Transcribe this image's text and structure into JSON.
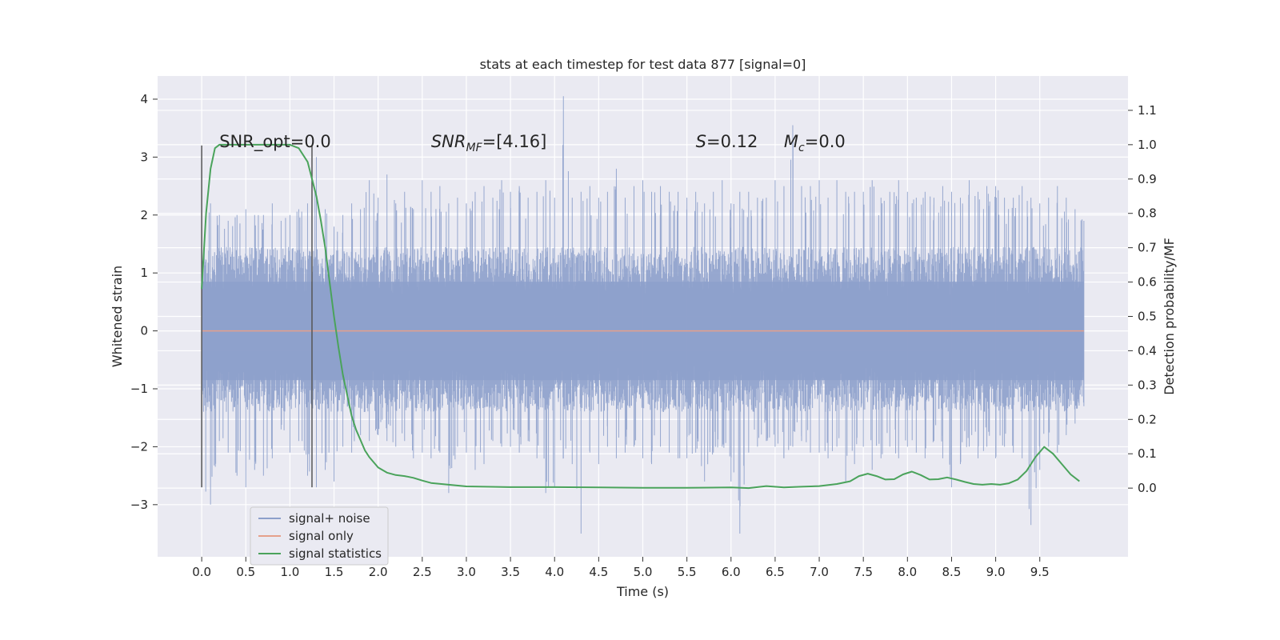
{
  "chart_data": {
    "type": "line",
    "title": "stats at each timestep for test data 877 [signal=0]",
    "xlabel": "Time (s)",
    "ylabel_left": "Whitened strain",
    "ylabel_right": "Detection probability/MF",
    "xlim": [
      -0.5,
      10.5
    ],
    "ylim_left": [
      -3.9,
      4.4
    ],
    "ylim_right": [
      -0.2,
      1.2
    ],
    "xticks": [
      0.0,
      0.5,
      1.0,
      1.5,
      2.0,
      2.5,
      3.0,
      3.5,
      4.0,
      4.5,
      5.0,
      5.5,
      6.0,
      6.5,
      7.0,
      7.5,
      8.0,
      8.5,
      9.0,
      9.5
    ],
    "xtick_labels": [
      "0.0",
      "0.5",
      "1.0",
      "1.5",
      "2.0",
      "2.5",
      "3.0",
      "3.5",
      "4.0",
      "4.5",
      "5.0",
      "5.5",
      "6.0",
      "6.5",
      "7.0",
      "7.5",
      "8.0",
      "8.5",
      "9.0",
      "9.5"
    ],
    "yticks_left": [
      4,
      3,
      2,
      1,
      0,
      -1,
      -2,
      -3
    ],
    "ytick_labels_left": [
      "4",
      "3",
      "2",
      "1",
      "0",
      "−1",
      "−2",
      "−3"
    ],
    "yticks_right": [
      1.1,
      1.0,
      0.9,
      0.8,
      0.7,
      0.6,
      0.5,
      0.4,
      0.3,
      0.2,
      0.1,
      0.0
    ],
    "ytick_labels_right": [
      "1.1",
      "1.0",
      "0.9",
      "0.8",
      "0.7",
      "0.6",
      "0.5",
      "0.4",
      "0.3",
      "0.2",
      "0.1",
      "0.0"
    ],
    "grid": true,
    "legend_position": "lower-left",
    "annotations": {
      "snr_opt": "SNR_opt=0.0",
      "snr_mf_main": "SNR",
      "snr_mf_sub": "MF",
      "snr_mf_rest": "=[4.16]",
      "s_main": "S",
      "s_rest": "=0.12",
      "mc_main": "M",
      "mc_sub": "c",
      "mc_rest": "=0.0"
    },
    "vlines": [
      {
        "x": 0.0,
        "ymin": -2.7,
        "ymax": 3.2
      },
      {
        "x": 1.25,
        "ymin": -2.7,
        "ymax": 3.2
      }
    ],
    "series": [
      {
        "name": "signal+ noise",
        "color": "#8da0cb",
        "axis": "left",
        "x_range": [
          0.0,
          10.0
        ],
        "envelope": [
          [
            0.0,
            -2.7,
            1.4
          ],
          [
            0.1,
            -3.0,
            2.2
          ],
          [
            0.2,
            -1.9,
            2.0
          ],
          [
            0.3,
            -2.1,
            1.9
          ],
          [
            0.4,
            -2.5,
            2.0
          ],
          [
            0.5,
            -2.7,
            2.1
          ],
          [
            0.6,
            -2.4,
            2.0
          ],
          [
            0.7,
            -2.5,
            2.0
          ],
          [
            0.8,
            -2.2,
            2.2
          ],
          [
            0.9,
            -1.7,
            1.9
          ],
          [
            1.0,
            -2.1,
            2.0
          ],
          [
            1.1,
            -1.9,
            2.1
          ],
          [
            1.2,
            -2.5,
            2.2
          ],
          [
            1.3,
            -2.7,
            3.0
          ],
          [
            1.4,
            -2.4,
            2.1
          ],
          [
            1.5,
            -2.6,
            1.8
          ],
          [
            1.6,
            -2.0,
            2.0
          ],
          [
            1.7,
            -2.1,
            2.2
          ],
          [
            1.8,
            -1.8,
            2.1
          ],
          [
            1.9,
            -1.9,
            2.6
          ],
          [
            2.0,
            -1.8,
            2.3
          ],
          [
            2.1,
            -1.9,
            2.7
          ],
          [
            2.2,
            -2.0,
            2.2
          ],
          [
            2.3,
            -1.9,
            2.4
          ],
          [
            2.4,
            -2.2,
            2.1
          ],
          [
            2.5,
            -2.1,
            2.6
          ],
          [
            2.6,
            -2.2,
            2.4
          ],
          [
            2.7,
            -2.1,
            2.5
          ],
          [
            2.8,
            -2.8,
            2.2
          ],
          [
            2.9,
            -2.0,
            2.3
          ],
          [
            3.0,
            -2.1,
            2.2
          ],
          [
            3.1,
            -2.4,
            2.4
          ],
          [
            3.2,
            -2.3,
            2.5
          ],
          [
            3.3,
            -1.9,
            2.3
          ],
          [
            3.4,
            -2.0,
            2.6
          ],
          [
            3.5,
            -2.0,
            2.4
          ],
          [
            3.6,
            -2.1,
            2.5
          ],
          [
            3.7,
            -1.9,
            2.3
          ],
          [
            3.8,
            -2.2,
            2.4
          ],
          [
            3.9,
            -2.8,
            2.6
          ],
          [
            4.0,
            -2.7,
            2.3
          ],
          [
            4.1,
            -2.2,
            4.05
          ],
          [
            4.2,
            -2.3,
            2.3
          ],
          [
            4.3,
            -3.5,
            2.4
          ],
          [
            4.4,
            -2.1,
            2.5
          ],
          [
            4.5,
            -2.3,
            2.3
          ],
          [
            4.6,
            -2.0,
            2.4
          ],
          [
            4.7,
            -2.2,
            2.8
          ],
          [
            4.8,
            -2.1,
            2.3
          ],
          [
            4.9,
            -2.0,
            2.5
          ],
          [
            5.0,
            -2.2,
            2.6
          ],
          [
            5.1,
            -2.3,
            2.4
          ],
          [
            5.2,
            -2.0,
            2.5
          ],
          [
            5.3,
            -2.1,
            2.4
          ],
          [
            5.4,
            -2.2,
            2.4
          ],
          [
            5.5,
            -2.2,
            2.3
          ],
          [
            5.6,
            -2.1,
            2.4
          ],
          [
            5.7,
            -2.6,
            2.2
          ],
          [
            5.8,
            -2.1,
            2.4
          ],
          [
            5.9,
            -2.0,
            2.6
          ],
          [
            6.0,
            -2.6,
            2.2
          ],
          [
            6.1,
            -3.5,
            2.4
          ],
          [
            6.2,
            -2.1,
            2.4
          ],
          [
            6.3,
            -2.0,
            2.3
          ],
          [
            6.4,
            -1.9,
            2.3
          ],
          [
            6.5,
            -2.0,
            2.6
          ],
          [
            6.6,
            -2.2,
            2.5
          ],
          [
            6.7,
            -2.0,
            3.55
          ],
          [
            6.8,
            -1.9,
            2.5
          ],
          [
            6.9,
            -2.1,
            2.5
          ],
          [
            7.0,
            -2.1,
            2.6
          ],
          [
            7.1,
            -2.2,
            2.3
          ],
          [
            7.2,
            -2.0,
            2.6
          ],
          [
            7.3,
            -2.6,
            2.4
          ],
          [
            7.4,
            -2.3,
            2.4
          ],
          [
            7.5,
            -2.0,
            2.4
          ],
          [
            7.6,
            -2.4,
            2.6
          ],
          [
            7.7,
            -2.2,
            2.3
          ],
          [
            7.8,
            -2.0,
            2.4
          ],
          [
            7.9,
            -2.2,
            2.6
          ],
          [
            8.0,
            -2.0,
            2.4
          ],
          [
            8.1,
            -2.1,
            2.3
          ],
          [
            8.2,
            -2.2,
            2.4
          ],
          [
            8.3,
            -1.9,
            2.3
          ],
          [
            8.4,
            -2.2,
            2.5
          ],
          [
            8.5,
            -2.7,
            2.4
          ],
          [
            8.6,
            -2.3,
            2.3
          ],
          [
            8.7,
            -2.0,
            2.6
          ],
          [
            8.8,
            -2.2,
            2.4
          ],
          [
            8.9,
            -2.0,
            2.5
          ],
          [
            9.0,
            -2.2,
            2.5
          ],
          [
            9.1,
            -2.0,
            2.3
          ],
          [
            9.2,
            -2.1,
            2.3
          ],
          [
            9.3,
            -2.2,
            2.5
          ],
          [
            9.4,
            -3.35,
            2.3
          ],
          [
            9.5,
            -2.4,
            2.2
          ],
          [
            9.6,
            -2.0,
            2.3
          ],
          [
            9.7,
            -2.1,
            2.5
          ],
          [
            9.8,
            -1.8,
            2.3
          ],
          [
            9.9,
            -1.6,
            2.1
          ],
          [
            10.0,
            -1.3,
            1.9
          ]
        ]
      },
      {
        "name": "signal only",
        "color": "#e5a08b",
        "axis": "left",
        "x": [
          0.0,
          10.0
        ],
        "y": [
          0.0,
          0.0
        ]
      },
      {
        "name": "signal statistics",
        "color": "#4aa35b",
        "axis": "right",
        "x": [
          0.0,
          0.05,
          0.1,
          0.15,
          0.2,
          0.3,
          0.4,
          0.5,
          0.6,
          0.7,
          0.8,
          0.9,
          1.0,
          1.1,
          1.2,
          1.25,
          1.3,
          1.35,
          1.4,
          1.45,
          1.5,
          1.55,
          1.6,
          1.65,
          1.7,
          1.75,
          1.8,
          1.85,
          1.9,
          2.0,
          2.1,
          2.2,
          2.3,
          2.4,
          2.5,
          2.6,
          2.8,
          3.0,
          3.5,
          4.0,
          4.5,
          5.0,
          5.5,
          6.0,
          6.2,
          6.4,
          6.6,
          6.8,
          7.0,
          7.2,
          7.35,
          7.45,
          7.55,
          7.65,
          7.75,
          7.85,
          7.95,
          8.05,
          8.15,
          8.25,
          8.35,
          8.45,
          8.55,
          8.65,
          8.75,
          8.85,
          8.95,
          9.05,
          9.15,
          9.25,
          9.35,
          9.45,
          9.55,
          9.65,
          9.75,
          9.85,
          9.95
        ],
        "y": [
          0.58,
          0.8,
          0.93,
          0.99,
          1.0,
          1.0,
          1.0,
          1.0,
          1.0,
          1.0,
          1.0,
          1.0,
          1.0,
          0.99,
          0.95,
          0.9,
          0.85,
          0.78,
          0.7,
          0.6,
          0.5,
          0.41,
          0.33,
          0.27,
          0.21,
          0.17,
          0.14,
          0.11,
          0.09,
          0.06,
          0.045,
          0.038,
          0.035,
          0.03,
          0.022,
          0.015,
          0.01,
          0.005,
          0.003,
          0.003,
          0.002,
          0.001,
          0.001,
          0.002,
          0.0,
          0.006,
          0.002,
          0.004,
          0.006,
          0.012,
          0.02,
          0.035,
          0.042,
          0.035,
          0.025,
          0.026,
          0.04,
          0.048,
          0.038,
          0.025,
          0.026,
          0.031,
          0.025,
          0.018,
          0.012,
          0.01,
          0.012,
          0.01,
          0.014,
          0.025,
          0.05,
          0.09,
          0.12,
          0.1,
          0.07,
          0.04,
          0.02
        ]
      }
    ]
  }
}
